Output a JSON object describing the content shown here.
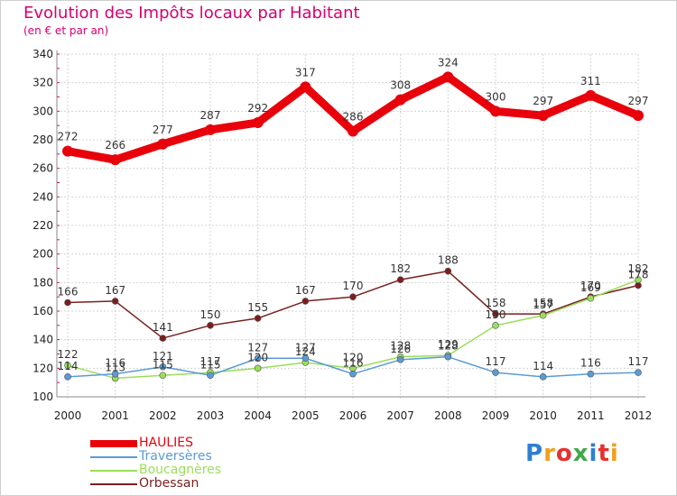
{
  "title": "Evolution des Impôts locaux par Habitant",
  "subtitle": "(en € et par an)",
  "brand": "Proxiti",
  "chart_data": {
    "type": "line",
    "title": "Evolution des Impôts locaux par Habitant",
    "subtitle": "(en € et par an)",
    "xlabel": "",
    "ylabel": "",
    "categories": [
      "2000",
      "2001",
      "2002",
      "2003",
      "2004",
      "2005",
      "2006",
      "2007",
      "2008",
      "2009",
      "2010",
      "2011",
      "2012"
    ],
    "ylim": [
      100,
      340
    ],
    "yticks": [
      100,
      120,
      140,
      160,
      180,
      200,
      220,
      240,
      260,
      280,
      300,
      320,
      340
    ],
    "grid": true,
    "legend_position": "bottom-left",
    "series": [
      {
        "name": "HAULIES",
        "color": "#e8000b",
        "values": [
          272,
          266,
          277,
          287,
          292,
          317,
          286,
          308,
          324,
          300,
          297,
          311,
          297
        ]
      },
      {
        "name": "Traversères",
        "color": "#5a9bd5",
        "values": [
          114,
          116,
          121,
          115,
          127,
          127,
          116,
          126,
          128,
          117,
          114,
          116,
          117
        ]
      },
      {
        "name": "Boucagnères",
        "color": "#9ade5a",
        "values": [
          122,
          113,
          115,
          117,
          120,
          124,
          120,
          128,
          129,
          150,
          157,
          169,
          182
        ]
      },
      {
        "name": "Orbessan",
        "color": "#7a1f1f",
        "values": [
          166,
          167,
          141,
          150,
          155,
          167,
          170,
          182,
          188,
          158,
          158,
          170,
          178
        ]
      }
    ]
  }
}
